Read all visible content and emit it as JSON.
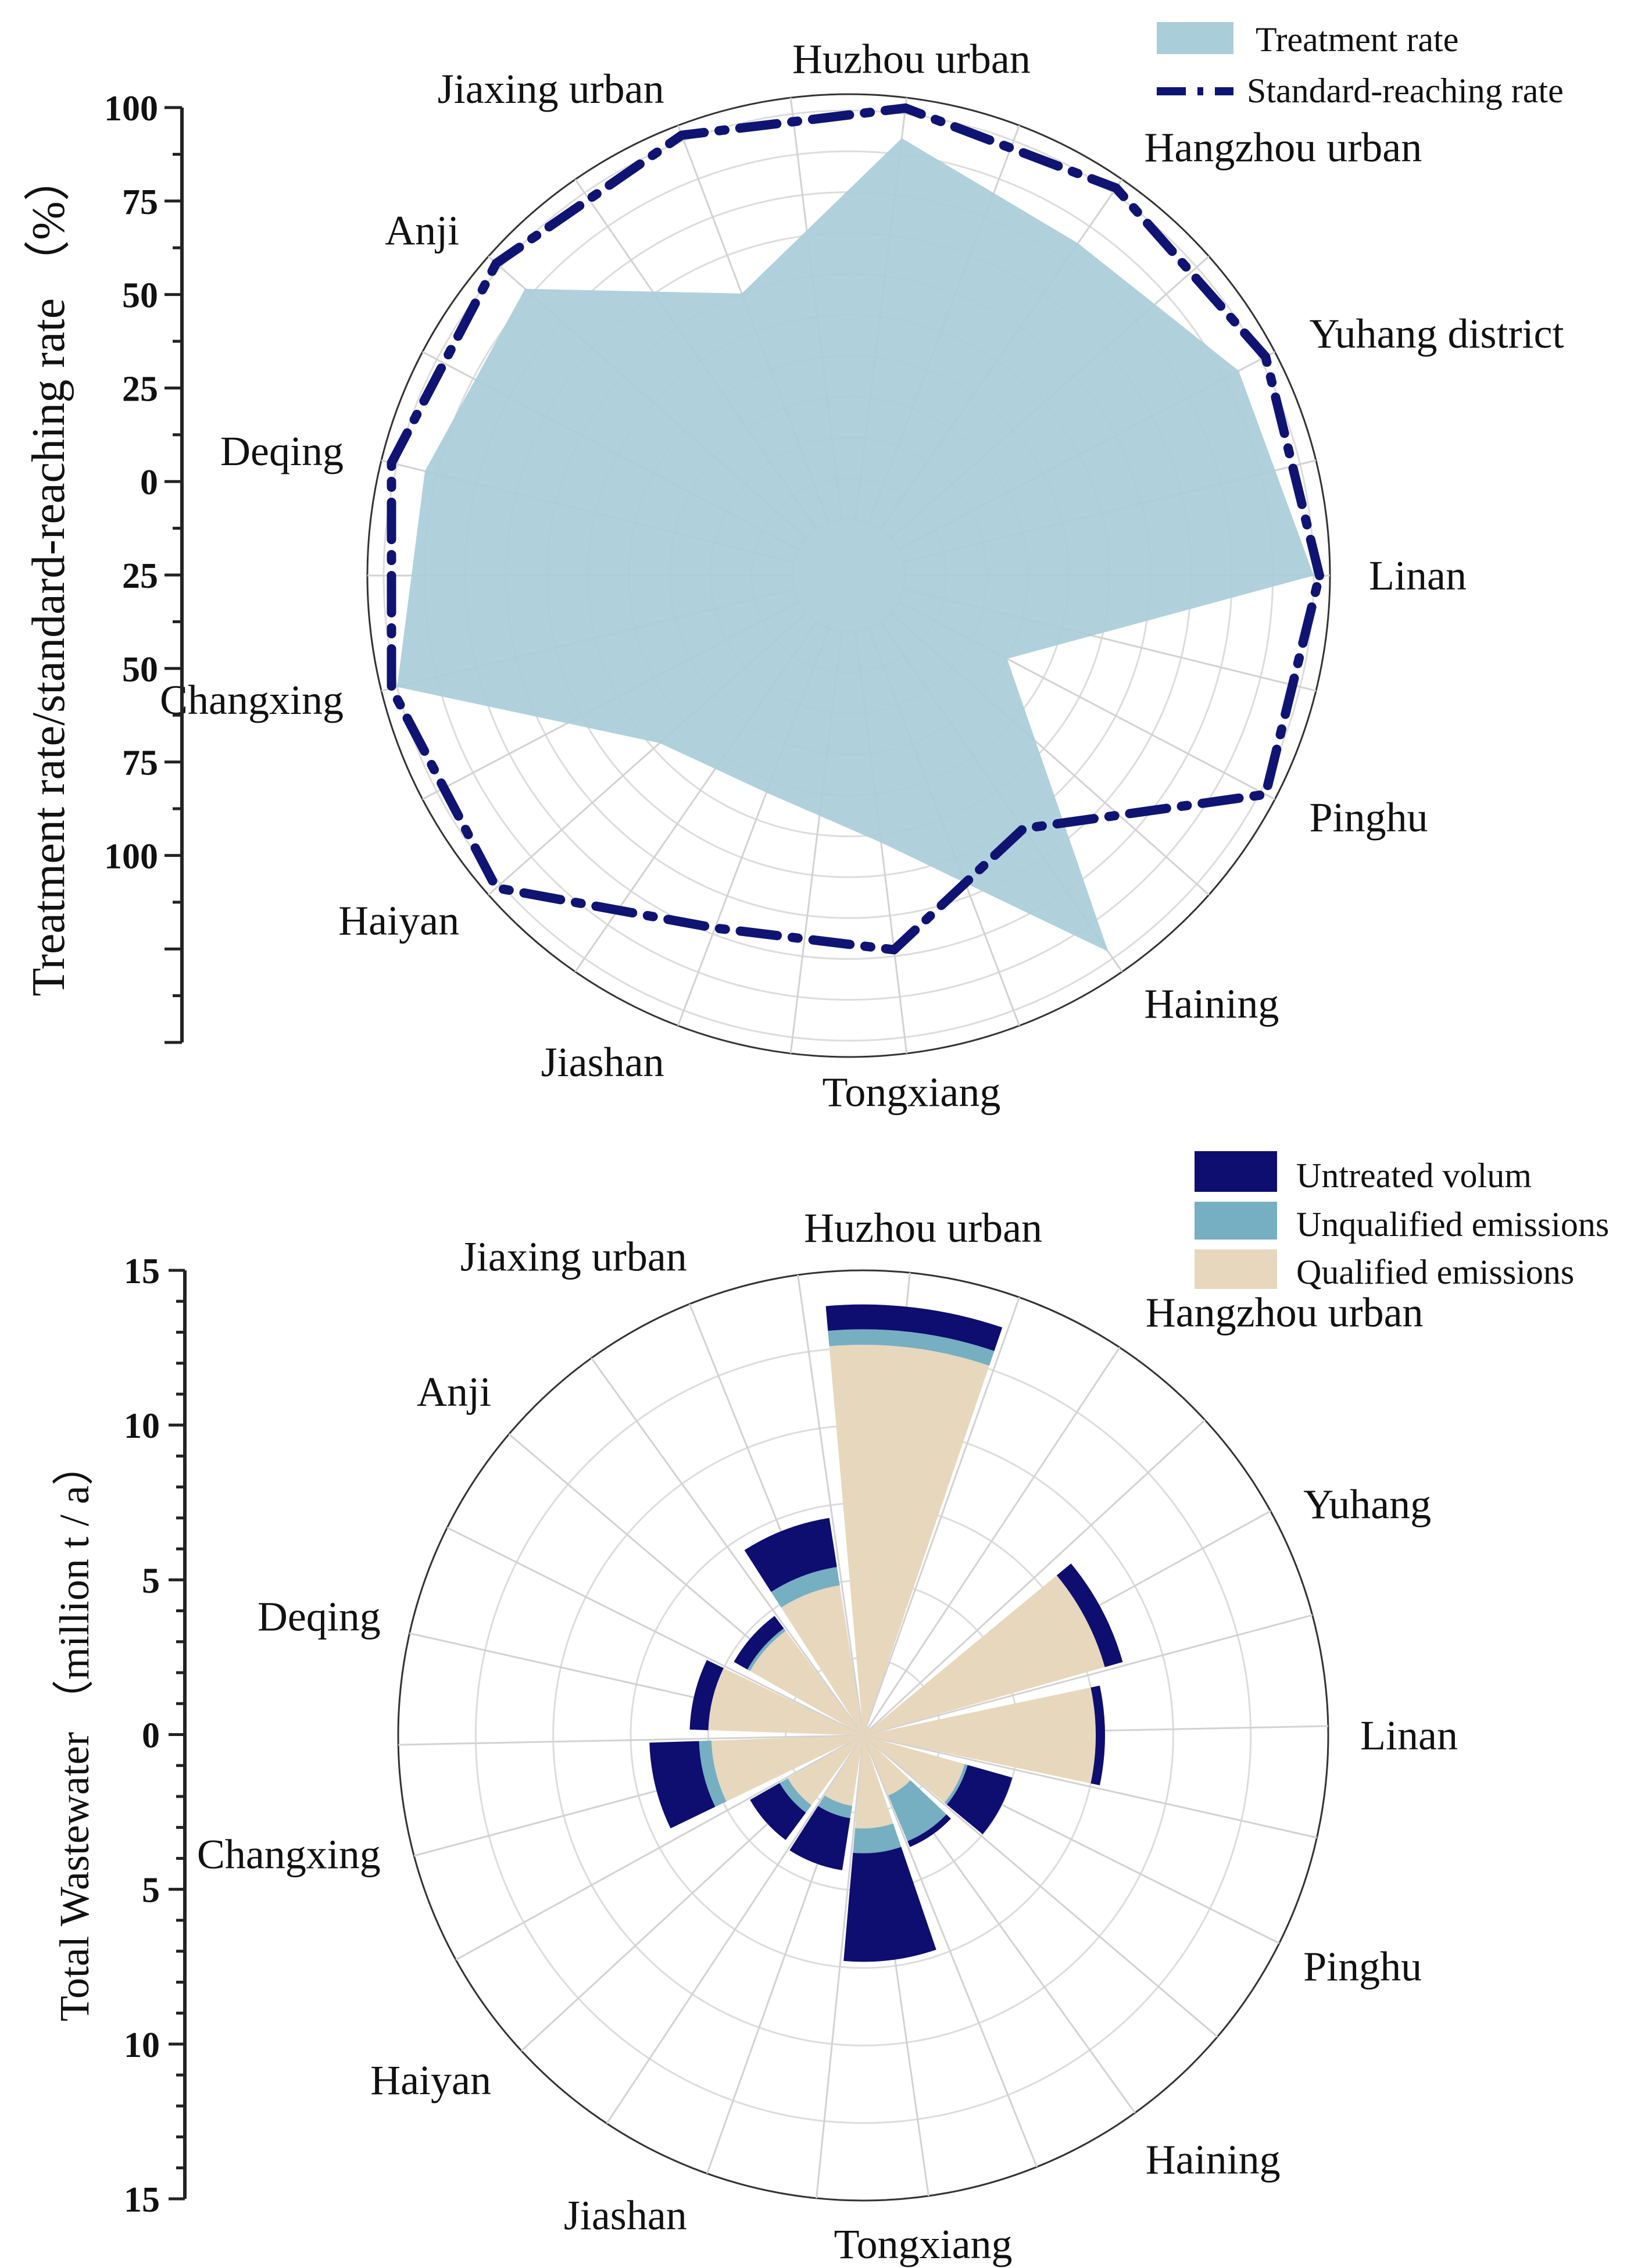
{
  "chart_data": [
    {
      "type": "radar",
      "ylabel": "Treatment rate/standard-reaching rate （%）",
      "yticks_upper": [
        "100",
        "75",
        "50",
        "25",
        "0"
      ],
      "yticks_lower": [
        "25",
        "50",
        "75",
        "100"
      ],
      "categories": [
        "Linan",
        "Yuhang district",
        "Hangzhou urban",
        "Huzhou urban",
        "Jiaxing urban",
        "Anji",
        "Deqing",
        "Changxing",
        "Haiyan",
        "Jiashan",
        "Tongxiang",
        "Haining",
        "Pinghu"
      ],
      "series": [
        {
          "name": "Treatment rate",
          "style": "area",
          "color": "#a9cdd9",
          "values": [
            100,
            94,
            85,
            94,
            60,
            92,
            93,
            100,
            48,
            43,
            52,
            98,
            30
          ]
        },
        {
          "name": "Standard-reaching rate",
          "style": "dash-dot",
          "color": "#0f1473",
          "values": [
            100,
            100,
            100,
            100,
            100,
            100,
            100,
            100,
            100,
            77,
            77,
            60,
            100
          ]
        }
      ],
      "rlim": [
        0,
        100
      ],
      "legend": [
        {
          "label": "Treatment rate",
          "color": "#a9cdd9"
        },
        {
          "label": "Standard-reaching rate",
          "color": "#0f1473"
        }
      ]
    },
    {
      "type": "polar-stacked-bar",
      "ylabel": "Total Wastewater （million t / a）",
      "yticks_upper": [
        "15",
        "10",
        "5",
        "0"
      ],
      "yticks_lower": [
        "5",
        "10",
        "15"
      ],
      "categories": [
        "Linan",
        "Yuhang",
        "Hangzhou urban",
        "Huzhou urban",
        "Jiaxing urban",
        "Anji",
        "Deqing",
        "Changxing",
        "Haiyan",
        "Jiashan",
        "Tongxiang",
        "Haining",
        "Pinghu"
      ],
      "series": [
        {
          "name": "Qualified emissions",
          "color": "#e7d7bc",
          "values": [
            7.5,
            8.1,
            0.3,
            12.6,
            4.9,
            4.2,
            5.0,
            4.9,
            2.8,
            2.3,
            3.0,
            2.1,
            3.4
          ]
        },
        {
          "name": "Unqualified emissions",
          "color": "#76aec2",
          "values": [
            0,
            0,
            0,
            0.5,
            0.6,
            0.1,
            0,
            0.4,
            0.3,
            0.4,
            0.8,
            1.6,
            0.1
          ]
        },
        {
          "name": "Untreated volum",
          "color": "#0d0e70",
          "values": [
            0.3,
            0.6,
            0,
            0.8,
            1.6,
            0.5,
            0.6,
            1.6,
            1.1,
            1.7,
            3.5,
            0.2,
            1.5
          ]
        }
      ],
      "rlim": [
        0,
        15
      ],
      "legend": [
        {
          "label": "Untreated volum",
          "color": "#0d0e70"
        },
        {
          "label": "Unqualified emissions",
          "color": "#76aec2"
        },
        {
          "label": "Qualified emissions",
          "color": "#e7d7bc"
        }
      ]
    }
  ]
}
